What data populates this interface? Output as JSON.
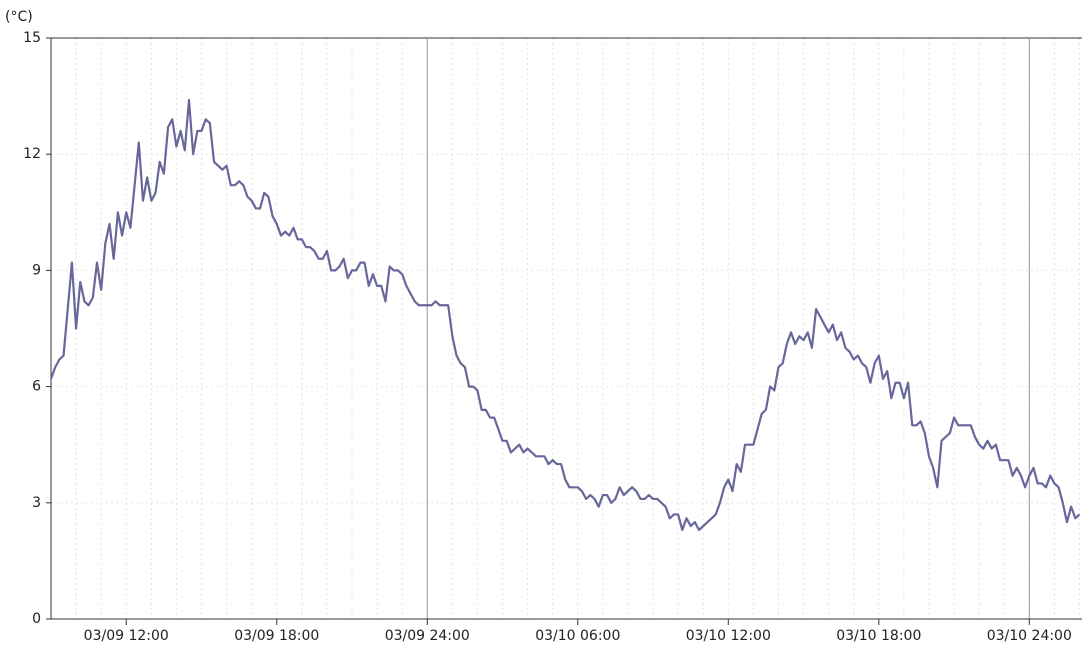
{
  "chart_data": {
    "type": "line",
    "y_label": "(°C)",
    "color": "#67679c",
    "ylim": [
      0,
      15
    ],
    "yticks": [
      0,
      3,
      6,
      9,
      12,
      15
    ],
    "xlim": [
      "03/09 09:00",
      "03/11 02:06"
    ],
    "xticks": [
      "03/09 12:00",
      "03/09 18:00",
      "03/09 24:00",
      "03/10 06:00",
      "03/10 12:00",
      "03/10 18:00",
      "03/10 24:00"
    ],
    "grid": true,
    "x": [
      "03/09 09:00",
      "03/09 09:10",
      "03/09 09:20",
      "03/09 09:30",
      "03/09 09:40",
      "03/09 09:50",
      "03/09 10:00",
      "03/09 10:10",
      "03/09 10:20",
      "03/09 10:30",
      "03/09 10:40",
      "03/09 10:50",
      "03/09 11:00",
      "03/09 11:10",
      "03/09 11:20",
      "03/09 11:30",
      "03/09 11:40",
      "03/09 11:50",
      "03/09 12:00",
      "03/09 12:10",
      "03/09 12:20",
      "03/09 12:30",
      "03/09 12:40",
      "03/09 12:50",
      "03/09 13:00",
      "03/09 13:10",
      "03/09 13:20",
      "03/09 13:30",
      "03/09 13:40",
      "03/09 13:50",
      "03/09 14:00",
      "03/09 14:10",
      "03/09 14:20",
      "03/09 14:30",
      "03/09 14:40",
      "03/09 14:50",
      "03/09 15:00",
      "03/09 15:10",
      "03/09 15:20",
      "03/09 15:30",
      "03/09 15:40",
      "03/09 15:50",
      "03/09 16:00",
      "03/09 16:10",
      "03/09 16:20",
      "03/09 16:30",
      "03/09 16:40",
      "03/09 16:50",
      "03/09 17:00",
      "03/09 17:10",
      "03/09 17:20",
      "03/09 17:30",
      "03/09 17:40",
      "03/09 17:50",
      "03/09 18:00",
      "03/09 18:10",
      "03/09 18:20",
      "03/09 18:30",
      "03/09 18:40",
      "03/09 18:50",
      "03/09 19:00",
      "03/09 19:10",
      "03/09 19:20",
      "03/09 19:30",
      "03/09 19:40",
      "03/09 19:50",
      "03/09 20:00",
      "03/09 20:10",
      "03/09 20:20",
      "03/09 20:30",
      "03/09 20:40",
      "03/09 20:50",
      "03/09 21:00",
      "03/09 21:10",
      "03/09 21:20",
      "03/09 21:30",
      "03/09 21:40",
      "03/09 21:50",
      "03/09 22:00",
      "03/09 22:10",
      "03/09 22:20",
      "03/09 22:30",
      "03/09 22:40",
      "03/09 22:50",
      "03/09 23:00",
      "03/09 23:10",
      "03/09 23:20",
      "03/09 23:30",
      "03/09 23:40",
      "03/09 23:50",
      "03/10 00:00",
      "03/10 00:10",
      "03/10 00:20",
      "03/10 00:30",
      "03/10 00:40",
      "03/10 00:50",
      "03/10 01:00",
      "03/10 01:10",
      "03/10 01:20",
      "03/10 01:30",
      "03/10 01:40",
      "03/10 01:50",
      "03/10 02:00",
      "03/10 02:10",
      "03/10 02:20",
      "03/10 02:30",
      "03/10 02:40",
      "03/10 02:50",
      "03/10 03:00",
      "03/10 03:10",
      "03/10 03:20",
      "03/10 03:30",
      "03/10 03:40",
      "03/10 03:50",
      "03/10 04:00",
      "03/10 04:10",
      "03/10 04:20",
      "03/10 04:30",
      "03/10 04:40",
      "03/10 04:50",
      "03/10 05:00",
      "03/10 05:10",
      "03/10 05:20",
      "03/10 05:30",
      "03/10 05:40",
      "03/10 05:50",
      "03/10 06:00",
      "03/10 06:10",
      "03/10 06:20",
      "03/10 06:30",
      "03/10 06:40",
      "03/10 06:50",
      "03/10 07:00",
      "03/10 07:10",
      "03/10 07:20",
      "03/10 07:30",
      "03/10 07:40",
      "03/10 07:50",
      "03/10 08:00",
      "03/10 08:10",
      "03/10 08:20",
      "03/10 08:30",
      "03/10 08:40",
      "03/10 08:50",
      "03/10 09:00",
      "03/10 09:10",
      "03/10 09:20",
      "03/10 09:30",
      "03/10 09:40",
      "03/10 09:50",
      "03/10 10:00",
      "03/10 10:10",
      "03/10 10:20",
      "03/10 10:30",
      "03/10 10:40",
      "03/10 10:50",
      "03/10 11:00",
      "03/10 11:10",
      "03/10 11:20",
      "03/10 11:30",
      "03/10 11:40",
      "03/10 11:50",
      "03/10 12:00",
      "03/10 12:10",
      "03/10 12:20",
      "03/10 12:30",
      "03/10 12:40",
      "03/10 12:50",
      "03/10 13:00",
      "03/10 13:10",
      "03/10 13:20",
      "03/10 13:30",
      "03/10 13:40",
      "03/10 13:50",
      "03/10 14:00",
      "03/10 14:10",
      "03/10 14:20",
      "03/10 14:30",
      "03/10 14:40",
      "03/10 14:50",
      "03/10 15:00",
      "03/10 15:10",
      "03/10 15:20",
      "03/10 15:30",
      "03/10 15:40",
      "03/10 15:50",
      "03/10 16:00",
      "03/10 16:10",
      "03/10 16:20",
      "03/10 16:30",
      "03/10 16:40",
      "03/10 16:50",
      "03/10 17:00",
      "03/10 17:10",
      "03/10 17:20",
      "03/10 17:30",
      "03/10 17:40",
      "03/10 17:50",
      "03/10 18:00",
      "03/10 18:10",
      "03/10 18:20",
      "03/10 18:30",
      "03/10 18:40",
      "03/10 18:50",
      "03/10 19:00",
      "03/10 19:10",
      "03/10 19:20",
      "03/10 19:30",
      "03/10 19:40",
      "03/10 19:50",
      "03/10 20:00",
      "03/10 20:10",
      "03/10 20:20",
      "03/10 20:30",
      "03/10 20:40",
      "03/10 20:50",
      "03/10 21:00",
      "03/10 21:10",
      "03/10 21:20",
      "03/10 21:30",
      "03/10 21:40",
      "03/10 21:50",
      "03/10 22:00",
      "03/10 22:10",
      "03/10 22:20",
      "03/10 22:30",
      "03/10 22:40",
      "03/10 22:50",
      "03/10 23:00",
      "03/10 23:10",
      "03/10 23:20",
      "03/10 23:30",
      "03/10 23:40",
      "03/10 23:50",
      "03/11 00:00",
      "03/11 00:10",
      "03/11 00:20",
      "03/11 00:30",
      "03/11 00:40",
      "03/11 00:50",
      "03/11 01:00",
      "03/11 01:10",
      "03/11 01:20",
      "03/11 01:30",
      "03/11 01:40",
      "03/11 01:50",
      "03/11 02:00"
    ],
    "values": [
      6.2,
      6.5,
      6.7,
      6.8,
      8.0,
      9.2,
      7.5,
      8.7,
      8.2,
      8.1,
      8.3,
      9.2,
      8.5,
      9.7,
      10.2,
      9.3,
      10.5,
      9.9,
      10.5,
      10.1,
      11.2,
      12.3,
      10.8,
      11.4,
      10.8,
      11.0,
      11.8,
      11.5,
      12.7,
      12.9,
      12.2,
      12.6,
      12.1,
      13.4,
      12.0,
      12.6,
      12.6,
      12.9,
      12.8,
      11.8,
      11.7,
      11.6,
      11.7,
      11.2,
      11.2,
      11.3,
      11.2,
      10.9,
      10.8,
      10.6,
      10.6,
      11.0,
      10.9,
      10.4,
      10.2,
      9.9,
      10.0,
      9.9,
      10.1,
      9.8,
      9.8,
      9.6,
      9.6,
      9.5,
      9.3,
      9.3,
      9.5,
      9.0,
      9.0,
      9.1,
      9.3,
      8.8,
      9.0,
      9.0,
      9.2,
      9.2,
      8.6,
      8.9,
      8.6,
      8.6,
      8.2,
      9.1,
      9.0,
      9.0,
      8.9,
      8.6,
      8.4,
      8.2,
      8.1,
      8.1,
      8.1,
      8.1,
      8.2,
      8.1,
      8.1,
      8.1,
      7.3,
      6.8,
      6.6,
      6.5,
      6.0,
      6.0,
      5.9,
      5.4,
      5.4,
      5.2,
      5.2,
      4.9,
      4.6,
      4.6,
      4.3,
      4.4,
      4.5,
      4.3,
      4.4,
      4.3,
      4.2,
      4.2,
      4.2,
      4.0,
      4.1,
      4.0,
      4.0,
      3.6,
      3.4,
      3.4,
      3.4,
      3.3,
      3.1,
      3.2,
      3.1,
      2.9,
      3.2,
      3.2,
      3.0,
      3.1,
      3.4,
      3.2,
      3.3,
      3.4,
      3.3,
      3.1,
      3.1,
      3.2,
      3.1,
      3.1,
      3.0,
      2.9,
      2.6,
      2.7,
      2.7,
      2.3,
      2.6,
      2.4,
      2.5,
      2.3,
      2.4,
      2.5,
      2.6,
      2.7,
      3.0,
      3.4,
      3.6,
      3.3,
      4.0,
      3.8,
      4.5,
      4.5,
      4.5,
      4.9,
      5.3,
      5.4,
      6.0,
      5.9,
      6.5,
      6.6,
      7.1,
      7.4,
      7.1,
      7.3,
      7.2,
      7.4,
      7.0,
      8.0,
      7.8,
      7.6,
      7.4,
      7.6,
      7.2,
      7.4,
      7.0,
      6.9,
      6.7,
      6.8,
      6.6,
      6.5,
      6.1,
      6.6,
      6.8,
      6.2,
      6.4,
      5.7,
      6.1,
      6.1,
      5.7,
      6.1,
      5.0,
      5.0,
      5.1,
      4.8,
      4.2,
      3.9,
      3.4,
      4.6,
      4.7,
      4.8,
      5.2,
      5.0,
      5.0,
      5.0,
      5.0,
      4.7,
      4.5,
      4.4,
      4.6,
      4.4,
      4.5,
      4.1,
      4.1,
      4.1,
      3.7,
      3.9,
      3.7,
      3.4,
      3.7,
      3.9,
      3.5,
      3.5,
      3.4,
      3.7,
      3.5,
      3.4,
      3.0,
      2.5,
      2.9,
      2.6,
      2.7
    ]
  }
}
